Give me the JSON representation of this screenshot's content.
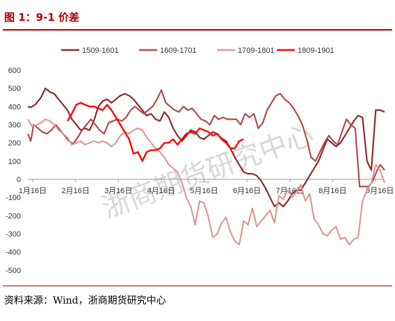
{
  "header": {
    "title": "图 1：9-1 价差"
  },
  "footer": {
    "source": "资料来源：Wind，浙商期货研究中心"
  },
  "watermark": "浙商期货研究中心",
  "chart_data": {
    "type": "line",
    "title": "图 1：9-1 价差",
    "x_tick_labels": [
      "1月16日",
      "2月16日",
      "3月16日",
      "4月16日",
      "5月16日",
      "6月16日",
      "7月16日",
      "8月16日",
      "9月16日"
    ],
    "y_ticks": [
      600,
      500,
      400,
      300,
      200,
      100,
      0,
      -100,
      -200,
      -300,
      -400,
      -500
    ],
    "ylim": [
      -500,
      600
    ],
    "xlim_days": [
      0,
      243
    ],
    "grid": false,
    "legend": "top",
    "series": [
      {
        "name": "1509-1601",
        "color": "#8b2b2b",
        "points": [
          [
            0,
            400
          ],
          [
            2,
            395
          ],
          [
            5,
            410
          ],
          [
            9,
            450
          ],
          [
            12,
            500
          ],
          [
            15,
            480
          ],
          [
            18,
            470
          ],
          [
            21,
            440
          ],
          [
            24,
            410
          ],
          [
            27,
            380
          ],
          [
            30,
            330
          ],
          [
            33,
            300
          ],
          [
            36,
            270
          ],
          [
            39,
            280
          ],
          [
            42,
            270
          ],
          [
            45,
            320
          ],
          [
            48,
            400
          ],
          [
            51,
            430
          ],
          [
            54,
            440
          ],
          [
            57,
            420
          ],
          [
            60,
            440
          ],
          [
            63,
            460
          ],
          [
            66,
            470
          ],
          [
            69,
            460
          ],
          [
            72,
            440
          ],
          [
            75,
            410
          ],
          [
            78,
            380
          ],
          [
            81,
            350
          ],
          [
            84,
            360
          ],
          [
            87,
            330
          ],
          [
            90,
            320
          ],
          [
            93,
            370
          ],
          [
            96,
            340
          ],
          [
            99,
            280
          ],
          [
            102,
            240
          ],
          [
            105,
            210
          ],
          [
            108,
            240
          ],
          [
            111,
            270
          ],
          [
            114,
            260
          ],
          [
            117,
            230
          ],
          [
            120,
            220
          ],
          [
            123,
            240
          ],
          [
            126,
            260
          ],
          [
            129,
            250
          ],
          [
            132,
            225
          ],
          [
            135,
            210
          ],
          [
            138,
            170
          ],
          [
            141,
            120
          ],
          [
            144,
            80
          ],
          [
            147,
            40
          ],
          [
            150,
            30
          ],
          [
            153,
            30
          ],
          [
            156,
            20
          ],
          [
            159,
            -10
          ],
          [
            162,
            -50
          ],
          [
            165,
            -100
          ],
          [
            168,
            -150
          ],
          [
            171,
            -130
          ],
          [
            174,
            -150
          ],
          [
            177,
            -120
          ],
          [
            180,
            -80
          ],
          [
            183,
            -60
          ],
          [
            186,
            -60
          ],
          [
            189,
            -20
          ],
          [
            192,
            20
          ],
          [
            195,
            60
          ],
          [
            198,
            100
          ],
          [
            201,
            160
          ],
          [
            204,
            220
          ],
          [
            207,
            200
          ],
          [
            210,
            180
          ],
          [
            213,
            200
          ],
          [
            216,
            240
          ],
          [
            219,
            280
          ],
          [
            222,
            320
          ],
          [
            225,
            350
          ],
          [
            228,
            340
          ],
          [
            231,
            100
          ],
          [
            234,
            50
          ],
          [
            237,
            380
          ],
          [
            240,
            380
          ],
          [
            243,
            370
          ]
        ]
      },
      {
        "name": "1609-1701",
        "color": "#b24a48",
        "points": [
          [
            0,
            250
          ],
          [
            2,
            210
          ],
          [
            4,
            300
          ],
          [
            7,
            280
          ],
          [
            10,
            260
          ],
          [
            13,
            250
          ],
          [
            16,
            270
          ],
          [
            19,
            300
          ],
          [
            22,
            270
          ],
          [
            25,
            240
          ],
          [
            28,
            210
          ],
          [
            31,
            195
          ],
          [
            34,
            230
          ],
          [
            37,
            270
          ],
          [
            40,
            300
          ],
          [
            43,
            330
          ],
          [
            46,
            300
          ],
          [
            49,
            270
          ],
          [
            52,
            250
          ],
          [
            55,
            310
          ],
          [
            58,
            320
          ],
          [
            61,
            330
          ],
          [
            64,
            320
          ],
          [
            67,
            340
          ],
          [
            70,
            380
          ],
          [
            73,
            400
          ],
          [
            76,
            380
          ],
          [
            79,
            360
          ],
          [
            82,
            380
          ],
          [
            85,
            400
          ],
          [
            88,
            440
          ],
          [
            91,
            490
          ],
          [
            94,
            420
          ],
          [
            97,
            400
          ],
          [
            100,
            380
          ],
          [
            103,
            370
          ],
          [
            106,
            400
          ],
          [
            109,
            380
          ],
          [
            112,
            390
          ],
          [
            115,
            360
          ],
          [
            118,
            330
          ],
          [
            121,
            320
          ],
          [
            124,
            300
          ],
          [
            127,
            350
          ],
          [
            130,
            330
          ],
          [
            133,
            340
          ],
          [
            136,
            330
          ],
          [
            139,
            330
          ],
          [
            142,
            330
          ],
          [
            145,
            300
          ],
          [
            148,
            360
          ],
          [
            151,
            340
          ],
          [
            154,
            360
          ],
          [
            157,
            280
          ],
          [
            160,
            310
          ],
          [
            163,
            380
          ],
          [
            166,
            420
          ],
          [
            169,
            460
          ],
          [
            172,
            470
          ],
          [
            175,
            440
          ],
          [
            178,
            420
          ],
          [
            181,
            390
          ],
          [
            184,
            350
          ],
          [
            187,
            300
          ],
          [
            190,
            220
          ],
          [
            193,
            120
          ],
          [
            196,
            100
          ],
          [
            199,
            150
          ],
          [
            202,
            200
          ],
          [
            205,
            240
          ],
          [
            208,
            210
          ],
          [
            211,
            190
          ],
          [
            214,
            260
          ],
          [
            217,
            330
          ],
          [
            220,
            300
          ],
          [
            223,
            280
          ],
          [
            226,
            -40
          ],
          [
            229,
            -40
          ],
          [
            232,
            -40
          ],
          [
            235,
            -10
          ],
          [
            238,
            50
          ],
          [
            240,
            80
          ],
          [
            243,
            50
          ]
        ]
      },
      {
        "name": "1709-1801",
        "color": "#dd9a96",
        "points": [
          [
            0,
            330
          ],
          [
            3,
            290
          ],
          [
            6,
            300
          ],
          [
            9,
            310
          ],
          [
            12,
            330
          ],
          [
            15,
            320
          ],
          [
            18,
            300
          ],
          [
            21,
            270
          ],
          [
            24,
            250
          ],
          [
            27,
            230
          ],
          [
            30,
            190
          ],
          [
            33,
            200
          ],
          [
            36,
            210
          ],
          [
            39,
            190
          ],
          [
            42,
            200
          ],
          [
            45,
            210
          ],
          [
            48,
            200
          ],
          [
            51,
            210
          ],
          [
            54,
            200
          ],
          [
            57,
            180
          ],
          [
            60,
            200
          ],
          [
            63,
            240
          ],
          [
            66,
            260
          ],
          [
            69,
            250
          ],
          [
            72,
            270
          ],
          [
            75,
            280
          ],
          [
            78,
            270
          ],
          [
            81,
            230
          ],
          [
            84,
            200
          ],
          [
            87,
            170
          ],
          [
            90,
            150
          ],
          [
            93,
            120
          ],
          [
            96,
            80
          ],
          [
            99,
            60
          ],
          [
            102,
            40
          ],
          [
            105,
            -20
          ],
          [
            108,
            -100
          ],
          [
            111,
            -150
          ],
          [
            114,
            -250
          ],
          [
            117,
            -120
          ],
          [
            120,
            -130
          ],
          [
            123,
            -210
          ],
          [
            126,
            -320
          ],
          [
            129,
            -300
          ],
          [
            132,
            -240
          ],
          [
            135,
            -210
          ],
          [
            138,
            -290
          ],
          [
            141,
            -340
          ],
          [
            144,
            -360
          ],
          [
            147,
            -230
          ],
          [
            150,
            -250
          ],
          [
            153,
            -160
          ],
          [
            156,
            -260
          ],
          [
            159,
            -230
          ],
          [
            162,
            -200
          ],
          [
            165,
            -170
          ],
          [
            168,
            -240
          ],
          [
            171,
            -90
          ],
          [
            174,
            -110
          ],
          [
            177,
            -60
          ],
          [
            180,
            -100
          ],
          [
            183,
            -70
          ],
          [
            186,
            -30
          ],
          [
            189,
            -120
          ],
          [
            192,
            -80
          ],
          [
            195,
            -220
          ],
          [
            198,
            -250
          ],
          [
            201,
            -300
          ],
          [
            204,
            -310
          ],
          [
            207,
            -280
          ],
          [
            210,
            -260
          ],
          [
            213,
            -330
          ],
          [
            216,
            -320
          ],
          [
            219,
            -360
          ],
          [
            222,
            -330
          ],
          [
            225,
            -320
          ],
          [
            228,
            -120
          ],
          [
            231,
            -60
          ],
          [
            234,
            -20
          ],
          [
            237,
            80
          ],
          [
            240,
            50
          ],
          [
            243,
            -20
          ]
        ]
      },
      {
        "name": "1809-1901",
        "color": "#ff0000",
        "points": [
          [
            27,
            320
          ],
          [
            30,
            360
          ],
          [
            33,
            410
          ],
          [
            36,
            420
          ],
          [
            39,
            410
          ],
          [
            42,
            400
          ],
          [
            45,
            400
          ],
          [
            48,
            390
          ],
          [
            51,
            380
          ],
          [
            54,
            410
          ],
          [
            57,
            380
          ],
          [
            60,
            340
          ],
          [
            63,
            300
          ],
          [
            66,
            260
          ],
          [
            69,
            220
          ],
          [
            72,
            140
          ],
          [
            75,
            150
          ],
          [
            78,
            100
          ],
          [
            81,
            150
          ],
          [
            84,
            160
          ],
          [
            87,
            160
          ],
          [
            90,
            170
          ],
          [
            93,
            200
          ],
          [
            96,
            200
          ],
          [
            99,
            220
          ],
          [
            102,
            190
          ],
          [
            105,
            220
          ],
          [
            108,
            250
          ],
          [
            111,
            260
          ],
          [
            114,
            250
          ],
          [
            117,
            280
          ],
          [
            120,
            270
          ],
          [
            123,
            260
          ],
          [
            126,
            240
          ],
          [
            129,
            250
          ],
          [
            132,
            220
          ],
          [
            135,
            200
          ],
          [
            138,
            170
          ],
          [
            141,
            170
          ],
          [
            144,
            210
          ],
          [
            147,
            220
          ]
        ]
      }
    ]
  }
}
